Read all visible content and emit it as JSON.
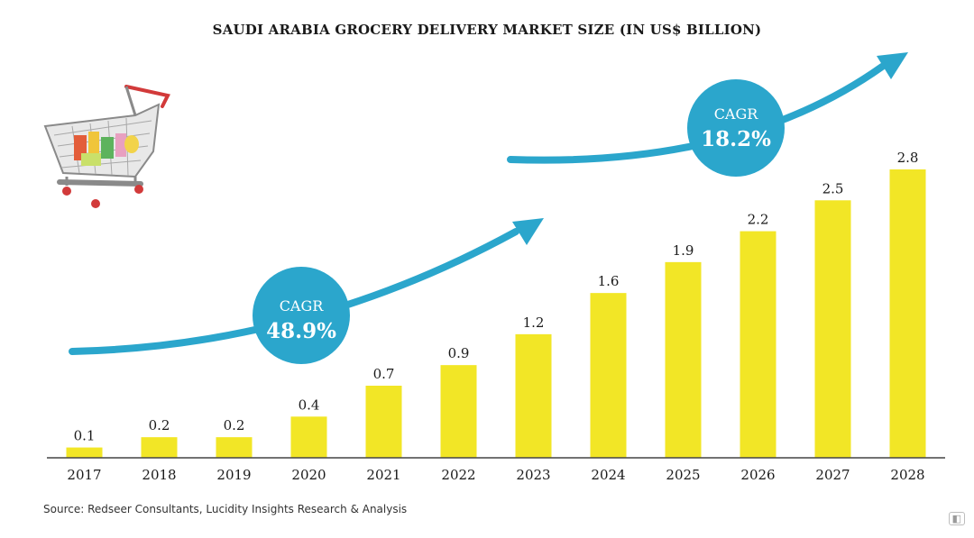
{
  "chart_data": {
    "type": "bar",
    "title": "SAUDI ARABIA GROCERY DELIVERY MARKET SIZE (IN US$ BILLION)",
    "categories": [
      "2017",
      "2018",
      "2019",
      "2020",
      "2021",
      "2022",
      "2023",
      "2024",
      "2025",
      "2026",
      "2027",
      "2028"
    ],
    "values": [
      0.1,
      0.2,
      0.2,
      0.4,
      0.7,
      0.9,
      1.2,
      1.6,
      1.9,
      2.2,
      2.5,
      2.8
    ],
    "value_labels": [
      "0.1",
      "0.2",
      "0.2",
      "0.4",
      "0.7",
      "0.9",
      "1.2",
      "1.6",
      "1.9",
      "2.2",
      "2.5",
      "2.8"
    ],
    "ylim": [
      0,
      2.8
    ],
    "grid": false,
    "bar_color": "#f2e626",
    "annotations": [
      {
        "label": "CAGR",
        "value": "48.9%"
      },
      {
        "label": "CAGR",
        "value": "18.2%"
      }
    ],
    "annotation_color": "#2ba6cc"
  },
  "source": "Source: Redseer Consultants, Lucidity Insights Research & Analysis",
  "icons": {
    "illustration": "shopping-cart-icon",
    "watermark": "watermark-logo"
  }
}
